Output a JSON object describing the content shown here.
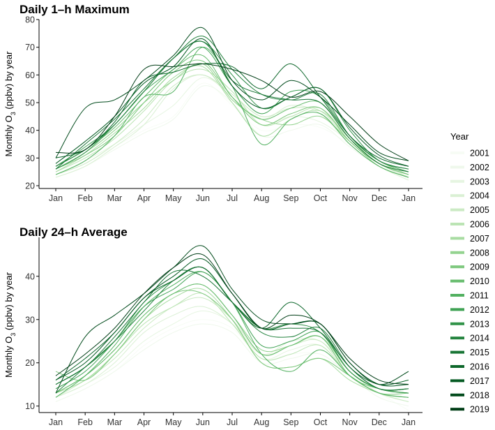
{
  "chart_data": [
    {
      "type": "line",
      "title": "Daily 1–h Maximum",
      "ylabel_prefix": "Monthly O",
      "ylabel_sub": "3",
      "ylabel_suffix": " (ppbv) by year",
      "xlabel": "",
      "categories": [
        "Jan",
        "Feb",
        "Mar",
        "Apr",
        "May",
        "Jun",
        "Jul",
        "Aug",
        "Sep",
        "Oct",
        "Nov",
        "Dec",
        "Jan"
      ],
      "x": [
        1,
        2,
        3,
        4,
        5,
        6,
        7,
        8,
        9,
        10,
        11,
        12,
        13
      ],
      "ylim": [
        19,
        80
      ],
      "yticks": [
        20,
        30,
        40,
        50,
        60,
        70,
        80
      ],
      "ytick_labels": [
        "20",
        "30",
        "40",
        "50",
        "60",
        "70",
        "80"
      ],
      "grid": false,
      "series": [
        {
          "name": "2001",
          "color": "#f7fcf5",
          "values": [
            24,
            28,
            34,
            40,
            45,
            57,
            49,
            40,
            42,
            41,
            35,
            28,
            24
          ]
        },
        {
          "name": "2002",
          "color": "#eff8ec",
          "values": [
            23,
            27,
            33,
            39,
            44,
            56,
            50,
            38,
            40,
            42,
            34,
            27,
            23
          ]
        },
        {
          "name": "2003",
          "color": "#e6f5e1",
          "values": [
            24,
            29,
            35,
            42,
            49,
            59,
            52,
            42,
            45,
            43,
            36,
            29,
            23
          ]
        },
        {
          "name": "2004",
          "color": "#daf0d4",
          "values": [
            23,
            27,
            34,
            42,
            55,
            60,
            52,
            44,
            49,
            46,
            35,
            27,
            22
          ]
        },
        {
          "name": "2005",
          "color": "#cbeac4",
          "values": [
            24,
            28,
            35,
            44,
            56,
            60,
            53,
            45,
            48,
            47,
            36,
            28,
            23
          ]
        },
        {
          "name": "2006",
          "color": "#bbe4b4",
          "values": [
            25,
            30,
            37,
            47,
            58,
            62,
            54,
            42,
            45,
            48,
            37,
            29,
            24
          ]
        },
        {
          "name": "2007",
          "color": "#a8dca2",
          "values": [
            25,
            31,
            39,
            48,
            59,
            63,
            50,
            38,
            44,
            47,
            37,
            28,
            24
          ]
        },
        {
          "name": "2008",
          "color": "#94d390",
          "values": [
            26,
            32,
            40,
            50,
            58,
            64,
            51,
            44,
            42,
            45,
            36,
            27,
            23
          ]
        },
        {
          "name": "2009",
          "color": "#7ec87e",
          "values": [
            26,
            31,
            38,
            50,
            61,
            65,
            52,
            42,
            46,
            48,
            36,
            28,
            25
          ]
        },
        {
          "name": "2010",
          "color": "#67bc6e",
          "values": [
            27,
            33,
            41,
            52,
            62,
            67,
            52,
            44,
            48,
            50,
            37,
            28,
            24
          ]
        },
        {
          "name": "2011",
          "color": "#52b060",
          "values": [
            24,
            29,
            38,
            52,
            54,
            70,
            56,
            35,
            44,
            46,
            35,
            27,
            23
          ]
        },
        {
          "name": "2012",
          "color": "#3fa254",
          "values": [
            27,
            34,
            42,
            54,
            62,
            70,
            56,
            46,
            54,
            52,
            38,
            29,
            25
          ]
        },
        {
          "name": "2013",
          "color": "#319349",
          "values": [
            26,
            32,
            42,
            54,
            66,
            72,
            60,
            48,
            52,
            55,
            40,
            29,
            26
          ]
        },
        {
          "name": "2014",
          "color": "#24833f",
          "values": [
            27,
            33,
            42,
            54,
            66,
            74,
            62,
            53,
            51,
            53,
            38,
            29,
            26
          ]
        },
        {
          "name": "2015",
          "color": "#187535",
          "values": [
            26,
            35,
            44,
            55,
            66,
            72,
            58,
            53,
            51,
            50,
            37,
            28,
            25
          ]
        },
        {
          "name": "2016",
          "color": "#0d672b",
          "values": [
            30,
            33,
            43,
            58,
            61,
            64,
            63,
            55,
            64,
            52,
            38,
            30,
            27
          ]
        },
        {
          "name": "2017",
          "color": "#055a23",
          "values": [
            28,
            36,
            45,
            57,
            63,
            73,
            56,
            48,
            52,
            55,
            41,
            31,
            27
          ]
        },
        {
          "name": "2018",
          "color": "#024b1c",
          "values": [
            30,
            48,
            51,
            58,
            67,
            77,
            58,
            51,
            58,
            52,
            42,
            32,
            29
          ]
        },
        {
          "name": "2019",
          "color": "#003d16",
          "values": [
            32,
            33,
            45,
            62,
            63,
            64,
            62,
            58,
            52,
            54,
            45,
            35,
            29
          ]
        }
      ]
    },
    {
      "type": "line",
      "title": "Daily 24–h Average",
      "ylabel_prefix": "Monthly O",
      "ylabel_sub": "3",
      "ylabel_suffix": " (ppbv) by year",
      "xlabel": "",
      "categories": [
        "Jan",
        "Feb",
        "Mar",
        "Apr",
        "May",
        "Jun",
        "Jul",
        "Aug",
        "Sep",
        "Oct",
        "Nov",
        "Dec",
        "Jan"
      ],
      "x": [
        1,
        2,
        3,
        4,
        5,
        6,
        7,
        8,
        9,
        10,
        11,
        12,
        13
      ],
      "ylim": [
        8.5,
        49
      ],
      "yticks": [
        10,
        20,
        30,
        40
      ],
      "ytick_labels": [
        "10",
        "20",
        "30",
        "40"
      ],
      "grid": false,
      "series": [
        {
          "name": "2001",
          "color": "#f7fcf5",
          "values": [
            11,
            14,
            18,
            24,
            28,
            30,
            28,
            21,
            22,
            22,
            17,
            13,
            9
          ]
        },
        {
          "name": "2002",
          "color": "#eff8ec",
          "values": [
            11,
            14,
            18,
            23,
            27,
            29,
            27,
            20,
            21,
            22,
            17,
            12,
            10
          ]
        },
        {
          "name": "2003",
          "color": "#e6f5e1",
          "values": [
            12,
            15,
            19,
            25,
            29,
            32,
            29,
            21,
            23,
            24,
            17,
            13,
            11
          ]
        },
        {
          "name": "2004",
          "color": "#daf0d4",
          "values": [
            12,
            15,
            20,
            27,
            31,
            33,
            29,
            22,
            25,
            25,
            18,
            13,
            11
          ]
        },
        {
          "name": "2005",
          "color": "#cbeac4",
          "values": [
            12,
            16,
            21,
            28,
            33,
            35,
            30,
            22,
            24,
            25,
            17,
            13,
            11
          ]
        },
        {
          "name": "2006",
          "color": "#bbe4b4",
          "values": [
            13,
            16,
            22,
            29,
            33,
            36,
            29,
            21,
            22,
            24,
            17,
            13,
            12
          ]
        },
        {
          "name": "2007",
          "color": "#a8dca2",
          "values": [
            13,
            16,
            22,
            30,
            35,
            37,
            30,
            20,
            19,
            21,
            16,
            13,
            12
          ]
        },
        {
          "name": "2008",
          "color": "#94d390",
          "values": [
            13,
            17,
            23,
            31,
            36,
            38,
            31,
            23,
            24,
            26,
            18,
            14,
            13
          ]
        },
        {
          "name": "2009",
          "color": "#7ec87e",
          "values": [
            18,
            16,
            22,
            30,
            36,
            36,
            30,
            20,
            19,
            21,
            17,
            13,
            13
          ]
        },
        {
          "name": "2010",
          "color": "#67bc6e",
          "values": [
            13,
            17,
            23,
            31,
            36,
            38,
            31,
            22,
            24,
            26,
            17,
            14,
            13
          ]
        },
        {
          "name": "2011",
          "color": "#52b060",
          "values": [
            12,
            17,
            24,
            33,
            38,
            41,
            34,
            22,
            18,
            23,
            17,
            13,
            12
          ]
        },
        {
          "name": "2012",
          "color": "#3fa254",
          "values": [
            14,
            18,
            25,
            33,
            37,
            41,
            34,
            24,
            25,
            27,
            18,
            14,
            14
          ]
        },
        {
          "name": "2013",
          "color": "#319349",
          "values": [
            15,
            19,
            25,
            34,
            39,
            42,
            34,
            28,
            29,
            27,
            18,
            14,
            13
          ]
        },
        {
          "name": "2014",
          "color": "#24833f",
          "values": [
            13,
            19,
            25,
            32,
            39,
            42,
            34,
            27,
            26,
            28,
            19,
            14,
            14
          ]
        },
        {
          "name": "2015",
          "color": "#187535",
          "values": [
            15,
            19,
            26,
            34,
            41,
            40,
            34,
            28,
            28,
            27,
            19,
            14,
            14
          ]
        },
        {
          "name": "2016",
          "color": "#0d672b",
          "values": [
            16,
            21,
            27,
            35,
            39,
            42,
            34,
            28,
            34,
            28,
            19,
            15,
            16
          ]
        },
        {
          "name": "2017",
          "color": "#055a23",
          "values": [
            16,
            20,
            27,
            35,
            40,
            44,
            36,
            28,
            29,
            29,
            20,
            15,
            15
          ]
        },
        {
          "name": "2018",
          "color": "#024b1c",
          "values": [
            13,
            26,
            31,
            36,
            42,
            47,
            37,
            30,
            29,
            29,
            20,
            15,
            18
          ]
        },
        {
          "name": "2019",
          "color": "#003d16",
          "values": [
            17,
            22,
            28,
            36,
            42,
            45,
            36,
            28,
            31,
            29,
            21,
            16,
            15
          ]
        }
      ]
    }
  ],
  "legend": {
    "title": "Year",
    "position": "right",
    "items": [
      "2001",
      "2002",
      "2003",
      "2004",
      "2005",
      "2006",
      "2007",
      "2008",
      "2009",
      "2010",
      "2011",
      "2012",
      "2013",
      "2014",
      "2015",
      "2016",
      "2017",
      "2018",
      "2019"
    ],
    "colors": [
      "#f7fcf5",
      "#eff8ec",
      "#e6f5e1",
      "#daf0d4",
      "#cbeac4",
      "#bbe4b4",
      "#a8dca2",
      "#94d390",
      "#7ec87e",
      "#67bc6e",
      "#52b060",
      "#3fa254",
      "#319349",
      "#24833f",
      "#187535",
      "#0d672b",
      "#055a23",
      "#024b1c",
      "#003d16"
    ]
  }
}
